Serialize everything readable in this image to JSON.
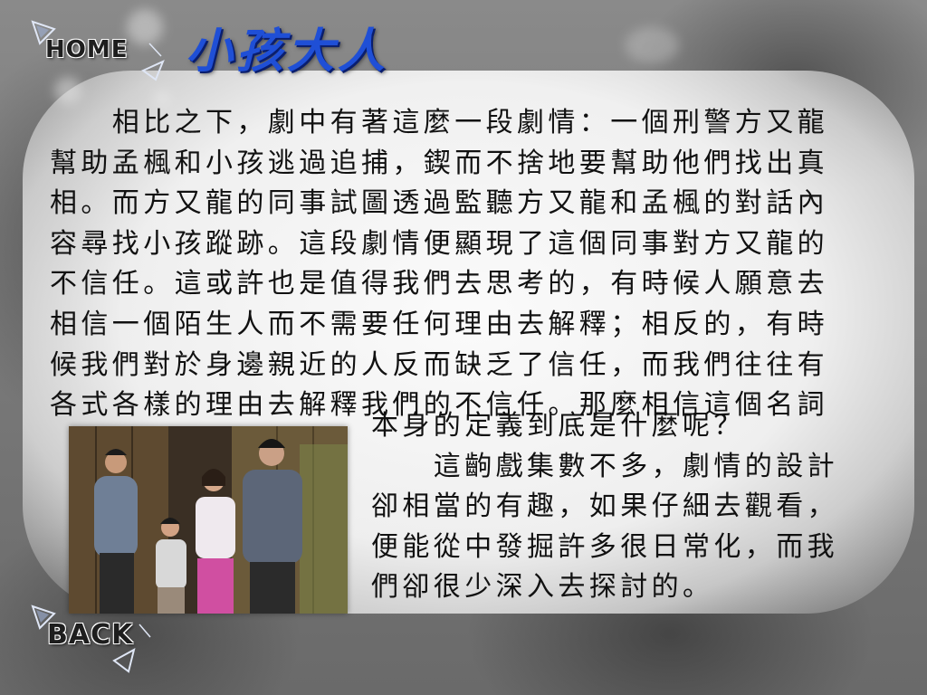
{
  "nav": {
    "home_label": "HOME",
    "back_label": "BACK"
  },
  "title": "小孩大人",
  "content": {
    "paragraph1": "　　相比之下，劇中有著這麼一段劇情：一個刑警方又龍\n幫助孟楓和小孩逃過追捕，鍥而不捨地要幫助他們找出真\n相。而方又龍的同事試圖透過監聽方又龍和孟楓的對話內\n容尋找小孩蹤跡。這段劇情便顯現了這個同事對方又龍的\n不信任。這或許也是值得我們去思考的，有時候人願意去\n相信一個陌生人而不需要任何理由去解釋；相反的，有時\n候我們對於身邊親近的人反而缺乏了信任，而我們往往有\n各式各樣的理由去解釋我們的不信任。那麼相信這個名詞",
    "paragraph2": "本身的定義到底是什麼呢？\n　　這齣戲集數不多，劇情的設計\n卻相當的有趣，如果仔細去觀看，\n便能從中發掘許多很日常化，而我\n們卻很少深入去探討的。"
  },
  "icons": {
    "home": "arrow-triangle-icon",
    "back": "arrow-triangle-icon"
  },
  "colors": {
    "title": "#1f4fd6",
    "text": "#111111",
    "background": "#6e6e6e"
  }
}
